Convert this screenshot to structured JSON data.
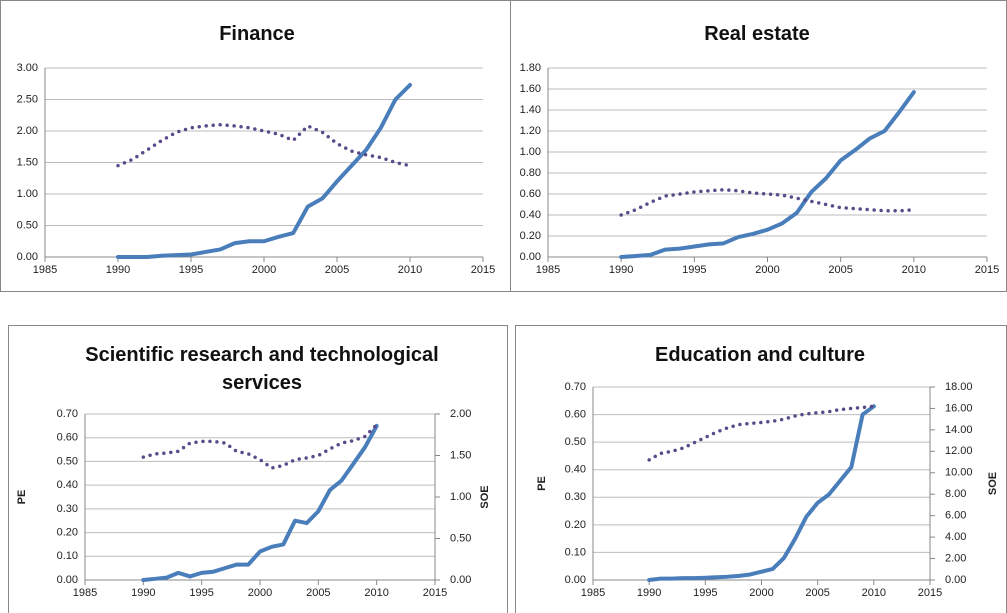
{
  "chart_data": [
    {
      "type": "line",
      "title": "Finance",
      "x": [
        1990,
        1991,
        1992,
        1993,
        1994,
        1995,
        1996,
        1997,
        1998,
        1999,
        2000,
        2001,
        2002,
        2003,
        2004,
        2005,
        2006,
        2007,
        2008,
        2009,
        2010
      ],
      "series": [
        {
          "color": "#4a7ebb",
          "style": "solid",
          "values": [
            0,
            0,
            0,
            0.02,
            0.03,
            0.04,
            0.08,
            0.12,
            0.22,
            0.25,
            0.25,
            0.32,
            0.38,
            0.8,
            0.93,
            1.2,
            1.45,
            1.7,
            2.05,
            2.5,
            2.73
          ]
        },
        {
          "color": "#5b4a8a",
          "style": "dotted",
          "values": [
            1.45,
            1.55,
            1.7,
            1.85,
            1.98,
            2.05,
            2.08,
            2.1,
            2.08,
            2.05,
            2.0,
            1.95,
            1.85,
            2.08,
            1.98,
            1.8,
            1.68,
            1.62,
            1.58,
            1.5,
            1.45
          ]
        }
      ],
      "xlim": [
        1985,
        2015
      ],
      "xticks": [
        1985,
        1990,
        1995,
        2000,
        2005,
        2010,
        2015
      ],
      "ylim": [
        0,
        3
      ],
      "yticks": [
        {
          "value": 0,
          "label": "0.00"
        },
        {
          "value": 0.5,
          "label": "0.50"
        },
        {
          "value": 1,
          "label": "1.00"
        },
        {
          "value": 1.5,
          "label": "1.50"
        },
        {
          "value": 2,
          "label": "2.00"
        },
        {
          "value": 2.5,
          "label": "2.50"
        },
        {
          "value": 3,
          "label": "3.00"
        }
      ],
      "grid": true
    },
    {
      "type": "line",
      "title": "Real estate",
      "x": [
        1990,
        1991,
        1992,
        1993,
        1994,
        1995,
        1996,
        1997,
        1998,
        1999,
        2000,
        2001,
        2002,
        2003,
        2004,
        2005,
        2006,
        2007,
        2008,
        2009,
        2010
      ],
      "series": [
        {
          "color": "#4a7ebb",
          "style": "solid",
          "values": [
            0,
            0.01,
            0.02,
            0.07,
            0.08,
            0.1,
            0.12,
            0.13,
            0.19,
            0.22,
            0.26,
            0.32,
            0.42,
            0.62,
            0.75,
            0.92,
            1.02,
            1.13,
            1.2,
            1.38,
            1.57
          ]
        },
        {
          "color": "#5b4a8a",
          "style": "dotted",
          "values": [
            0.4,
            0.45,
            0.52,
            0.58,
            0.6,
            0.62,
            0.63,
            0.64,
            0.63,
            0.61,
            0.6,
            0.59,
            0.56,
            0.53,
            0.5,
            0.47,
            0.46,
            0.45,
            0.44,
            0.44,
            0.45
          ]
        }
      ],
      "xlim": [
        1985,
        2015
      ],
      "xticks": [
        1985,
        1990,
        1995,
        2000,
        2005,
        2010,
        2015
      ],
      "ylim": [
        0,
        1.8
      ],
      "yticks": [
        {
          "value": 0,
          "label": "0.00"
        },
        {
          "value": 0.2,
          "label": "0.20"
        },
        {
          "value": 0.4,
          "label": "0.40"
        },
        {
          "value": 0.6,
          "label": "0.60"
        },
        {
          "value": 0.8,
          "label": "0.80"
        },
        {
          "value": 1,
          "label": "1.00"
        },
        {
          "value": 1.2,
          "label": "1.20"
        },
        {
          "value": 1.4,
          "label": "1.40"
        },
        {
          "value": 1.6,
          "label": "1.60"
        },
        {
          "value": 1.8,
          "label": "1.80"
        }
      ],
      "grid": true
    },
    {
      "type": "line",
      "title": "Scientific research and technological services",
      "ylabel": "PE",
      "y2label": "SOE",
      "x": [
        1990,
        1991,
        1992,
        1993,
        1994,
        1995,
        1996,
        1997,
        1998,
        1999,
        2000,
        2001,
        2002,
        2003,
        2004,
        2005,
        2006,
        2007,
        2008,
        2009,
        2010
      ],
      "series": [
        {
          "color": "#4a7ebb",
          "style": "solid",
          "values": [
            0,
            0.005,
            0.01,
            0.03,
            0.015,
            0.03,
            0.035,
            0.05,
            0.065,
            0.065,
            0.12,
            0.14,
            0.15,
            0.25,
            0.24,
            0.29,
            0.38,
            0.42,
            0.49,
            0.56,
            0.65
          ]
        },
        {
          "color": "#5b4a8a",
          "style": "dotted",
          "axis": "y2",
          "values": [
            1.48,
            1.52,
            1.53,
            1.55,
            1.65,
            1.67,
            1.67,
            1.65,
            1.55,
            1.52,
            1.45,
            1.35,
            1.38,
            1.45,
            1.47,
            1.5,
            1.58,
            1.65,
            1.68,
            1.73,
            1.87
          ]
        }
      ],
      "xlim": [
        1985,
        2015
      ],
      "xticks": [
        1985,
        1990,
        1995,
        2000,
        2005,
        2010,
        2015
      ],
      "ylim": [
        0,
        0.7
      ],
      "yticks": [
        {
          "value": 0,
          "label": "0.00"
        },
        {
          "value": 0.1,
          "label": "0.10"
        },
        {
          "value": 0.2,
          "label": "0.20"
        },
        {
          "value": 0.3,
          "label": "0.30"
        },
        {
          "value": 0.4,
          "label": "0.40"
        },
        {
          "value": 0.5,
          "label": "0.50"
        },
        {
          "value": 0.6,
          "label": "0.60"
        },
        {
          "value": 0.7,
          "label": "0.70"
        }
      ],
      "y2lim": [
        0,
        2
      ],
      "y2ticks": [
        {
          "value": 0,
          "label": "0.00"
        },
        {
          "value": 0.5,
          "label": "0.50"
        },
        {
          "value": 1,
          "label": "1.00"
        },
        {
          "value": 1.5,
          "label": "1.50"
        },
        {
          "value": 2,
          "label": "2.00"
        }
      ],
      "grid": true
    },
    {
      "type": "line",
      "title": "Education and culture",
      "ylabel": "PE",
      "y2label": "SOE",
      "x": [
        1990,
        1991,
        1992,
        1993,
        1994,
        1995,
        1996,
        1997,
        1998,
        1999,
        2000,
        2001,
        2002,
        2003,
        2004,
        2005,
        2006,
        2007,
        2008,
        2009,
        2010
      ],
      "series": [
        {
          "color": "#4a7ebb",
          "style": "solid",
          "values": [
            0,
            0.005,
            0.005,
            0.007,
            0.007,
            0.008,
            0.01,
            0.012,
            0.015,
            0.02,
            0.03,
            0.04,
            0.08,
            0.15,
            0.23,
            0.28,
            0.31,
            0.36,
            0.41,
            0.6,
            0.63
          ]
        },
        {
          "color": "#5b4a8a",
          "style": "dotted",
          "axis": "y2",
          "values": [
            11.2,
            11.8,
            12.0,
            12.3,
            12.8,
            13.3,
            13.8,
            14.2,
            14.5,
            14.6,
            14.7,
            14.8,
            15.0,
            15.3,
            15.5,
            15.6,
            15.7,
            15.9,
            16.0,
            16.1,
            16.2
          ]
        }
      ],
      "xlim": [
        1985,
        2015
      ],
      "xticks": [
        1985,
        1990,
        1995,
        2000,
        2005,
        2010,
        2015
      ],
      "ylim": [
        0,
        0.7
      ],
      "yticks": [
        {
          "value": 0,
          "label": "0.00"
        },
        {
          "value": 0.1,
          "label": "0.10"
        },
        {
          "value": 0.2,
          "label": "0.20"
        },
        {
          "value": 0.3,
          "label": "0.30"
        },
        {
          "value": 0.4,
          "label": "0.40"
        },
        {
          "value": 0.5,
          "label": "0.50"
        },
        {
          "value": 0.6,
          "label": "0.60"
        },
        {
          "value": 0.7,
          "label": "0.70"
        }
      ],
      "y2lim": [
        0,
        18
      ],
      "y2ticks": [
        {
          "value": 0,
          "label": "0.00"
        },
        {
          "value": 2,
          "label": "2.00"
        },
        {
          "value": 4,
          "label": "4.00"
        },
        {
          "value": 6,
          "label": "6.00"
        },
        {
          "value": 8,
          "label": "8.00"
        },
        {
          "value": 10,
          "label": "10.00"
        },
        {
          "value": 12,
          "label": "12.00"
        },
        {
          "value": 14,
          "label": "14.00"
        },
        {
          "value": 16,
          "label": "16.00"
        },
        {
          "value": 18,
          "label": "18.00"
        }
      ],
      "grid": true
    }
  ]
}
